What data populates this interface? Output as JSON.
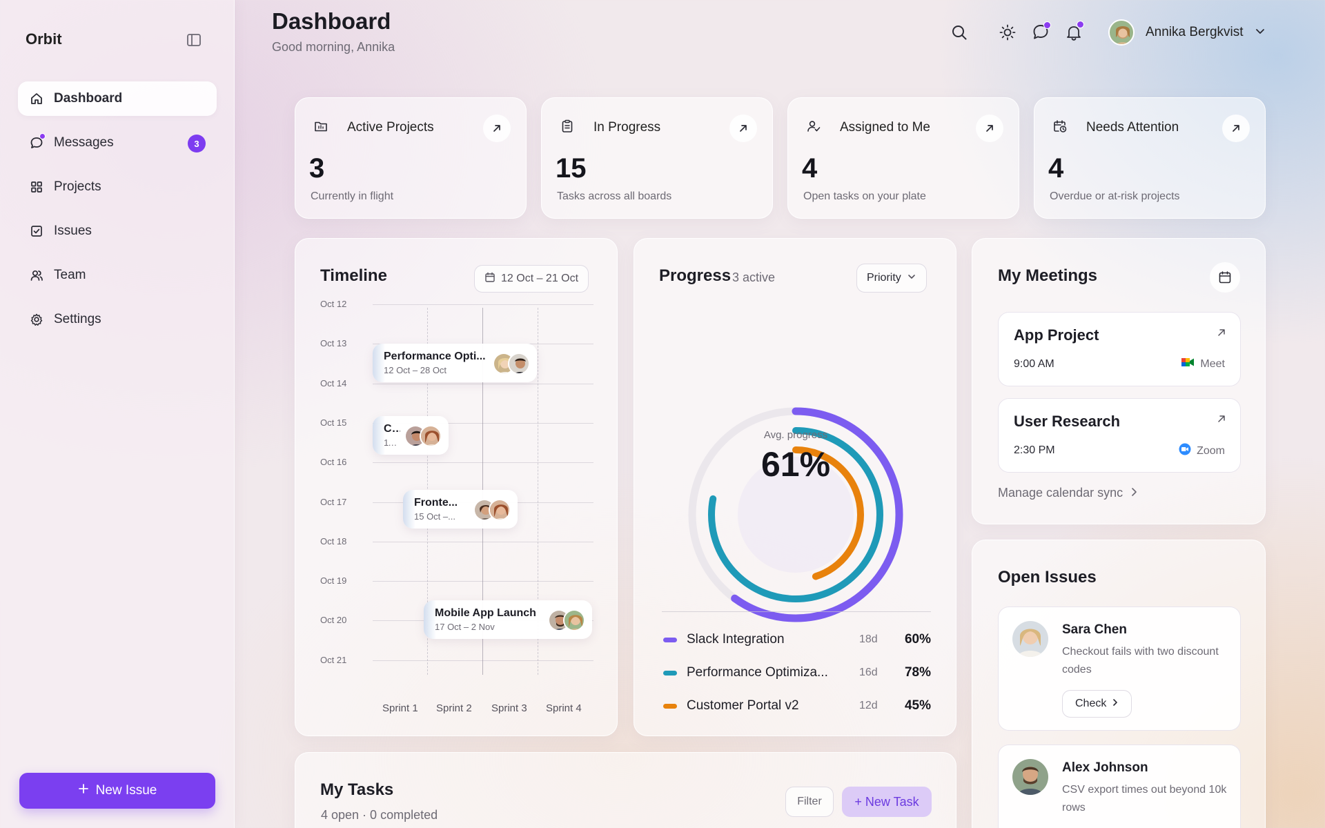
{
  "app": {
    "name": "Orbit"
  },
  "sidebar": {
    "items": [
      {
        "label": "Dashboard",
        "icon": "home-icon",
        "active": true
      },
      {
        "label": "Messages",
        "icon": "message-icon",
        "badge": "3"
      },
      {
        "label": "Projects",
        "icon": "grid-icon"
      },
      {
        "label": "Issues",
        "icon": "checkbox-icon"
      },
      {
        "label": "Team",
        "icon": "users-icon"
      },
      {
        "label": "Settings",
        "icon": "gear-icon"
      }
    ],
    "new_issue_label": "New Issue"
  },
  "header": {
    "title": "Dashboard",
    "greeting": "Good morning, Annika",
    "user_name": "Annika Bergkvist"
  },
  "stats": [
    {
      "label": "Active Projects",
      "value": "3",
      "sub": "Currently in flight",
      "icon": "folder-icon"
    },
    {
      "label": "In Progress",
      "value": "15",
      "sub": "Tasks across all boards",
      "icon": "clipboard-icon"
    },
    {
      "label": "Assigned to Me",
      "value": "4",
      "sub": "Open tasks on your plate",
      "icon": "user-check-icon"
    },
    {
      "label": "Needs Attention",
      "value": "4",
      "sub": "Overdue or at-risk projects",
      "icon": "calendar-clock-icon"
    }
  ],
  "timeline": {
    "title": "Timeline",
    "range": "12 Oct – 21 Oct",
    "dates": [
      "Oct 12",
      "Oct 13",
      "Oct 14",
      "Oct 15",
      "Oct 16",
      "Oct 17",
      "Oct 18",
      "Oct 19",
      "Oct 20",
      "Oct 21"
    ],
    "sprints": [
      "Sprint 1",
      "Sprint 2",
      "Sprint 3",
      "Sprint 4"
    ],
    "bars": [
      {
        "name": "Performance Opti...",
        "range": "12 Oct – 28 Oct"
      },
      {
        "name": "C...",
        "range": "11..."
      },
      {
        "name": "Fronte...",
        "range": "15 Oct –..."
      },
      {
        "name": "Mobile App Launch",
        "range": "17 Oct – 2 Nov"
      }
    ]
  },
  "progress": {
    "title": "Progress",
    "active_label": "3 active",
    "sort_label": "Priority",
    "center_label": "Avg. progress",
    "center_value": "61%",
    "items": [
      {
        "name": "Slack Integration",
        "days": "18d",
        "pct_label": "60%",
        "pct": 60,
        "color": "#7c5cf0"
      },
      {
        "name": "Performance Optimiza...",
        "days": "16d",
        "pct_label": "78%",
        "pct": 78,
        "color": "#1f9ab8"
      },
      {
        "name": "Customer Portal v2",
        "days": "12d",
        "pct_label": "45%",
        "pct": 45,
        "color": "#e8820c"
      }
    ]
  },
  "meetings": {
    "title": "My Meetings",
    "items": [
      {
        "title": "App Project",
        "time": "9:00 AM",
        "app": "Meet"
      },
      {
        "title": "User Research",
        "time": "2:30 PM",
        "app": "Zoom"
      }
    ],
    "manage_label": "Manage calendar sync"
  },
  "issues": {
    "title": "Open Issues",
    "items": [
      {
        "name": "Sara Chen",
        "desc": "Checkout fails with two discount codes",
        "action": "Check"
      },
      {
        "name": "Alex Johnson",
        "desc": "CSV export times out beyond 10k rows"
      }
    ]
  },
  "tasks": {
    "title": "My Tasks",
    "summary": "4 open · 0 completed",
    "filter_label": "Filter",
    "new_task_label": "+ New Task"
  }
}
